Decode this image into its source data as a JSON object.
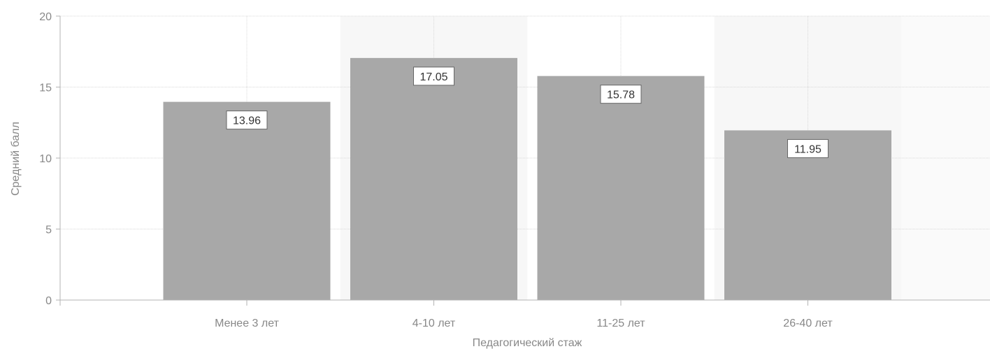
{
  "chart_data": {
    "type": "bar",
    "title": "",
    "xlabel": "Педагогический стаж",
    "ylabel": "Средний балл",
    "categories": [
      "Менее 3 лет",
      "4-10 лет",
      "11-25 лет",
      "26-40 лет"
    ],
    "values": [
      13.96,
      17.05,
      15.78,
      11.95
    ],
    "data_labels": [
      "13.96",
      "17.05",
      "15.78",
      "11.95"
    ],
    "ylim": [
      0,
      20
    ],
    "yticks": [
      "0",
      "5",
      "10",
      "15",
      "20"
    ],
    "ytick_values": [
      0,
      5,
      10,
      15,
      20
    ],
    "grid": true,
    "legend": "none",
    "colors": {
      "bar": "#a8a8a8",
      "grid": "#d9d9d9",
      "axis": "#b3b3b3",
      "band": "#f7f7f7",
      "text": "#888888"
    }
  }
}
